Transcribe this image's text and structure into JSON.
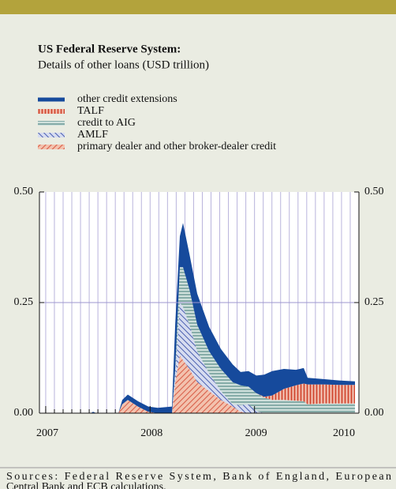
{
  "chart_data": {
    "type": "stacked_area",
    "title": "US Federal Reserve System:",
    "subtitle": "Details of other loans (USD trillion)",
    "note": "Sources: Federal Reserve System, Bank of England, European Central Bank and ECB calculations.",
    "x": [
      2006.94,
      2007.431,
      2007.454,
      2007.484,
      2007.696,
      2007.733,
      2007.786,
      2007.884,
      2007.983,
      2008.073,
      2008.209,
      2008.24,
      2008.285,
      2008.315,
      2008.376,
      2008.451,
      2008.565,
      2008.678,
      2008.791,
      2008.867,
      2008.942,
      2009.018,
      2009.093,
      2009.169,
      2009.282,
      2009.396,
      2009.471,
      2009.509,
      2009.66,
      2009.811,
      2009.962
    ],
    "series": [
      {
        "name": "primary dealer and other broker-dealer credit",
        "color": "#d9604a",
        "pattern": "diagonal-down",
        "values": [
          0,
          0,
          0,
          0,
          0,
          0.02,
          0.03,
          0.015,
          0.003,
          0,
          0,
          0.07,
          0.13,
          0.12,
          0.1,
          0.07,
          0.05,
          0.03,
          0.015,
          0.003,
          0,
          0,
          0,
          0,
          0,
          0,
          0,
          0,
          0,
          0,
          0
        ]
      },
      {
        "name": "AMLF",
        "color": "#4a5fb0",
        "pattern": "diagonal-up",
        "values": [
          0,
          0,
          0,
          0,
          0,
          0,
          0,
          0,
          0,
          0,
          0,
          0.02,
          0.12,
          0.12,
          0.1,
          0.07,
          0.04,
          0.02,
          0.005,
          0.015,
          0.02,
          0.005,
          0,
          0,
          0,
          0,
          0,
          0,
          0,
          0,
          0
        ]
      },
      {
        "name": "credit to AIG",
        "color": "#5f8f8c",
        "pattern": "horizontal",
        "values": [
          0,
          0,
          0,
          0,
          0,
          0,
          0,
          0,
          0,
          0,
          0,
          0.01,
          0.08,
          0.09,
          0.08,
          0.06,
          0.05,
          0.05,
          0.05,
          0.045,
          0.04,
          0.04,
          0.035,
          0.03,
          0.03,
          0.028,
          0.027,
          0.02,
          0.022,
          0.022,
          0.022
        ]
      },
      {
        "name": "TALF",
        "color": "#d0452e",
        "pattern": "vertical",
        "values": [
          0,
          0,
          0,
          0,
          0,
          0,
          0,
          0,
          0,
          0,
          0,
          0,
          0,
          0,
          0,
          0,
          0,
          0,
          0,
          0,
          0,
          0,
          0.002,
          0.01,
          0.025,
          0.035,
          0.04,
          0.045,
          0.043,
          0.042,
          0.042
        ]
      },
      {
        "name": "other credit extensions",
        "color": "#164a9c",
        "pattern": "solid",
        "values": [
          0,
          0,
          0.003,
          0,
          0,
          0.01,
          0.012,
          0.012,
          0.012,
          0.012,
          0.015,
          0.1,
          0.07,
          0.1,
          0.08,
          0.07,
          0.055,
          0.045,
          0.04,
          0.03,
          0.035,
          0.04,
          0.05,
          0.055,
          0.045,
          0.035,
          0.035,
          0.015,
          0.012,
          0.01,
          0.008
        ]
      }
    ],
    "xlim": [
      2006.94,
      2010.0
    ],
    "xticks": [
      2007,
      2008,
      2009,
      2010
    ],
    "ylim": [
      0,
      0.5
    ],
    "yticks": [
      {
        "value": 0,
        "label": "0.00"
      },
      0.25,
      {
        "value": 0.5,
        "label": "0.50"
      }
    ]
  }
}
